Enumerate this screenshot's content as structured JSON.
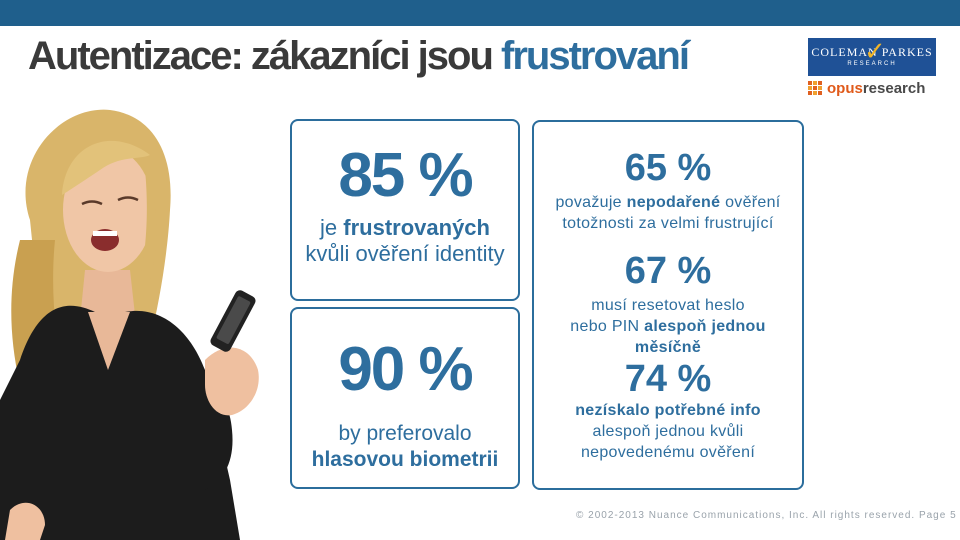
{
  "header": {
    "title_part1": "Autentizace: zákazníci jsou",
    "title_part2": "frustrovaní"
  },
  "logos": {
    "coleman_parkes": {
      "name": "COLEMAN PARKES",
      "sub": "RESEARCH"
    },
    "opus_research": {
      "part1": "opus",
      "part2": "research"
    }
  },
  "photo": {
    "icon": "woman-frustrated-with-phone"
  },
  "stats": {
    "box1": {
      "percent": "85 %",
      "line1_pre": "je ",
      "line1_bold": "frustrovaných",
      "line2": "kvůli ověření identity"
    },
    "box2": {
      "percent": "90 %",
      "line1": "by preferovalo",
      "line2": "hlasovou biometrii"
    },
    "box3": {
      "item1": {
        "percent": "65 %",
        "line1_pre": "považuje ",
        "line1_bold": "nepodařené",
        "line1_post": " ověření",
        "line2": "totožnosti za velmi frustrující"
      },
      "item2": {
        "percent": "67 %",
        "line1": "musí resetovat heslo",
        "line2_pre": "nebo PIN ",
        "line2_bold": "alespoň jednou",
        "line3_bold": "měsíčně"
      },
      "item3": {
        "percent": "74 %",
        "line1_bold": "nezískalo potřebné info",
        "line2": "alespoň jednou kvůli",
        "line3": "nepovedenému ověření"
      }
    }
  },
  "footer": {
    "text": "© 2002-2013 Nuance Communications, Inc. All rights reserved. Page 5"
  },
  "colors": {
    "accent": "#2e6e9e",
    "topbar": "#1f5f8c",
    "border": "#2b6d9c"
  }
}
